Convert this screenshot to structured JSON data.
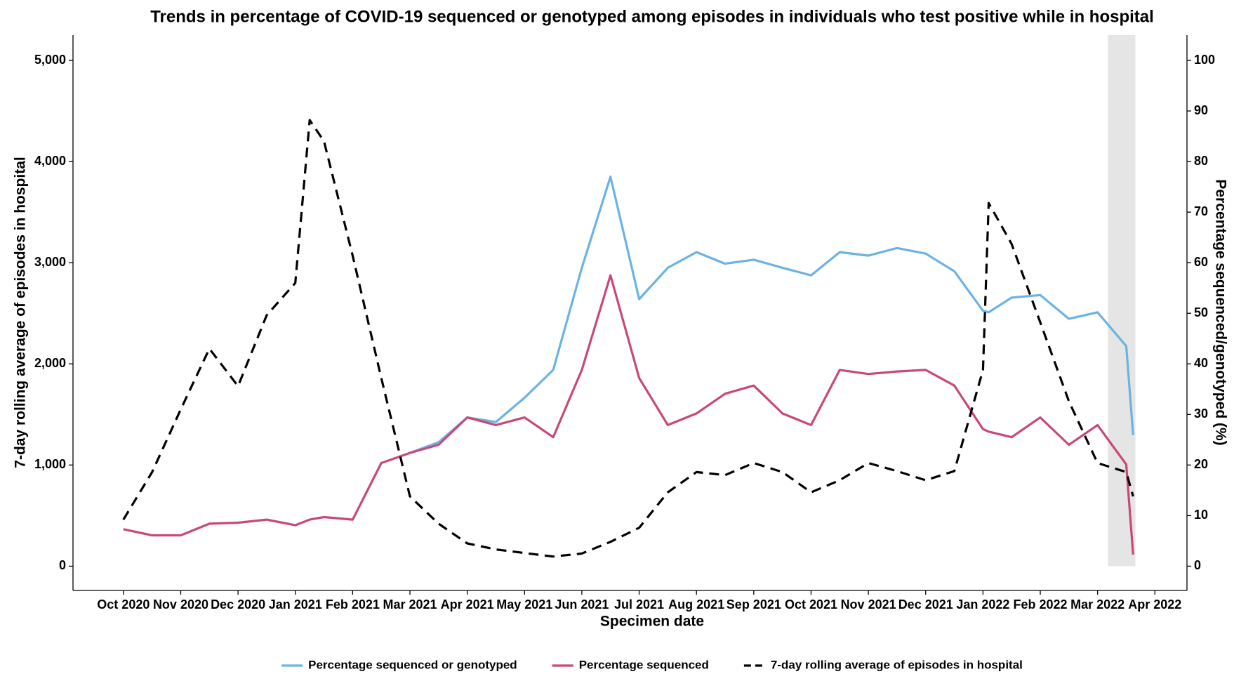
{
  "chart_data": {
    "type": "line",
    "title": "Trends in percentage of COVID-19 sequenced or genotyped among episodes in individuals who test positive while in hospital",
    "x_label": "Specimen date",
    "y_label": "7-day rolling average of episodes in hospital",
    "y2_label": "Percentage sequenced/genotyped (%)",
    "x": [
      0,
      0.5,
      1,
      1.5,
      2,
      2.5,
      3,
      3.25,
      3.5,
      4,
      4.5,
      5,
      5.5,
      6,
      6.5,
      7,
      7.5,
      8,
      8.5,
      9,
      9.5,
      10,
      10.5,
      11,
      11.5,
      12,
      12.5,
      13,
      13.5,
      14,
      14.5,
      15,
      15.1,
      15.5,
      16,
      16.5,
      17,
      17.5,
      17.62
    ],
    "series": [
      {
        "name": "Percentage sequenced or genotyped",
        "color": "#6bb3e3",
        "axis": "y2",
        "line_style": "solid",
        "values": [
          null,
          null,
          null,
          null,
          null,
          null,
          null,
          null,
          null,
          null,
          null,
          22.4,
          24.5,
          29.4,
          28.5,
          33.3,
          38.8,
          59,
          77,
          52.8,
          59,
          62.1,
          59.8,
          60.6,
          59,
          57.5,
          62.1,
          61.4,
          62.9,
          61.8,
          58.3,
          50.5,
          50.2,
          53.1,
          53.6,
          48.9,
          50.2,
          43.5,
          25.9
        ]
      },
      {
        "name": "Percentage sequenced",
        "color": "#c8487a",
        "axis": "y2",
        "line_style": "solid",
        "values": [
          7.3,
          6.1,
          6.1,
          8.4,
          8.6,
          9.2,
          8.1,
          9.2,
          9.7,
          9.2,
          20.4,
          22.4,
          24,
          29.4,
          27.9,
          29.4,
          25.5,
          38.8,
          57.5,
          37.2,
          27.9,
          30.2,
          34.1,
          35.7,
          30.2,
          27.9,
          38.8,
          38,
          38.5,
          38.8,
          35.7,
          27.1,
          26.6,
          25.5,
          29.4,
          24,
          27.9,
          20.1,
          2.3
        ]
      },
      {
        "name": "7-day rolling average of episodes in hospital",
        "color": "#000000",
        "axis": "y",
        "line_style": "dashed",
        "values": [
          460,
          930,
          1550,
          2150,
          1780,
          2480,
          2800,
          4410,
          4200,
          3070,
          1860,
          690,
          420,
          225,
          165,
          130,
          95,
          125,
          240,
          380,
          730,
          930,
          900,
          1020,
          930,
          730,
          850,
          1020,
          940,
          850,
          940,
          1940,
          3590,
          3185,
          2410,
          1630,
          1020,
          930,
          690
        ]
      }
    ],
    "xlim": [
      -0.88,
      18.56
    ],
    "xticks": [
      {
        "value": 0,
        "label": "Oct 2020"
      },
      {
        "value": 1,
        "label": "Nov 2020"
      },
      {
        "value": 2,
        "label": "Dec 2020"
      },
      {
        "value": 3,
        "label": "Jan 2021"
      },
      {
        "value": 4,
        "label": "Feb 2021"
      },
      {
        "value": 5,
        "label": "Mar 2021"
      },
      {
        "value": 6,
        "label": "Apr 2021"
      },
      {
        "value": 7,
        "label": "May 2021"
      },
      {
        "value": 8,
        "label": "Jun 2021"
      },
      {
        "value": 9,
        "label": "Jul 2021"
      },
      {
        "value": 10,
        "label": "Aug 2021"
      },
      {
        "value": 11,
        "label": "Sep 2021"
      },
      {
        "value": 12,
        "label": "Oct 2021"
      },
      {
        "value": 13,
        "label": "Nov 2021"
      },
      {
        "value": 14,
        "label": "Dec 2021"
      },
      {
        "value": 15,
        "label": "Jan 2022"
      },
      {
        "value": 16,
        "label": "Feb 2022"
      },
      {
        "value": 17,
        "label": "Mar 2022"
      },
      {
        "value": 18,
        "label": "Apr 2022"
      }
    ],
    "ylim": [
      -240,
      5250
    ],
    "yticks": [
      0,
      {
        "value": 1000,
        "label": "1,000"
      },
      {
        "value": 2000,
        "label": "2,000"
      },
      {
        "value": 3000,
        "label": "3,000"
      },
      {
        "value": 4000,
        "label": "4,000"
      },
      {
        "value": 5000,
        "label": "5,000"
      }
    ],
    "y2lim": [
      -4.8,
      105
    ],
    "y2ticks": [
      0,
      10,
      20,
      30,
      40,
      50,
      60,
      70,
      80,
      90,
      100
    ],
    "highlight_xrange": [
      17.18,
      17.66
    ],
    "highlight_color": "#e5e5e5",
    "legend": "bottom",
    "grid": false
  }
}
